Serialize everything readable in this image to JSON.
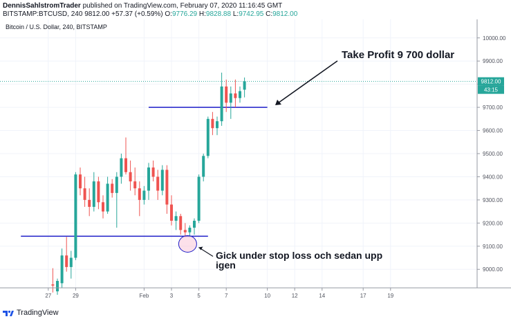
{
  "header": {
    "author": "DennisSahlstromTrader",
    "published_text": "published on TradingView.com, February 07, 2020 11:16:45 GMT",
    "symbol": "BITSTAMP:BTCUSD, 240",
    "last": "9812.00",
    "change": "+57.37 (+0.59%)",
    "o_label": "O:",
    "o_value": "9776.29",
    "h_label": "H:",
    "h_value": "9828.88",
    "l_label": "L:",
    "l_value": "9742.95",
    "c_label": "C:",
    "c_value": "9812.00"
  },
  "chart_title": "Bitcoin / U.S. Dollar, 240, BITSTAMP",
  "footer": {
    "brand": "TradingView"
  },
  "colors": {
    "up": "#26a69a",
    "down": "#ef5350",
    "line": "#1c1cc8",
    "annotation": "#131722",
    "price_tag": "#26a69a",
    "zone": "#f8bbd0"
  },
  "annotations": {
    "take_profit": "Take Profit 9 700 dollar",
    "stop_note_1": "Gick under stop loss och sedan upp",
    "stop_note_2": "igen"
  },
  "price_tag": {
    "price": "9812.00",
    "countdown": "43:15"
  },
  "chart_data": {
    "type": "candlestick",
    "title": "Bitcoin / U.S. Dollar, 240, BITSTAMP",
    "y_axis": {
      "ticks": [
        "10000.00",
        "9900.00",
        "9800.00",
        "9700.00",
        "9600.00",
        "9500.00",
        "9400.00",
        "9300.00",
        "9200.00",
        "9100.00",
        "9000.00"
      ],
      "ylim": [
        8920,
        10080
      ],
      "side": "right"
    },
    "x_axis": {
      "labels": [
        "27",
        "29",
        "Feb",
        "3",
        "5",
        "7",
        "10",
        "12",
        "14",
        "17",
        "19"
      ],
      "label_index": [
        -2,
        4,
        19,
        25,
        31,
        37,
        46,
        52,
        58,
        67,
        73
      ]
    },
    "horizontal_lines": [
      {
        "price": 9700,
        "from_index": 20,
        "to_index": 46
      },
      {
        "price": 9143,
        "from_index": -8,
        "to_index": 33
      }
    ],
    "current_price_line": 9812,
    "candles": [
      {
        "i": -1,
        "o": 8935,
        "h": 9005,
        "l": 8900,
        "c": 8930
      },
      {
        "i": 0,
        "o": 8905,
        "h": 8960,
        "l": 8890,
        "c": 8950
      },
      {
        "i": 1,
        "o": 8940,
        "h": 9090,
        "l": 8920,
        "c": 9060
      },
      {
        "i": 2,
        "o": 9060,
        "h": 9140,
        "l": 8990,
        "c": 9010
      },
      {
        "i": 3,
        "o": 9010,
        "h": 9080,
        "l": 8960,
        "c": 9050
      },
      {
        "i": 4,
        "o": 9050,
        "h": 9420,
        "l": 9040,
        "c": 9410
      },
      {
        "i": 5,
        "o": 9410,
        "h": 9440,
        "l": 9320,
        "c": 9350
      },
      {
        "i": 6,
        "o": 9350,
        "h": 9400,
        "l": 9270,
        "c": 9300
      },
      {
        "i": 7,
        "o": 9300,
        "h": 9350,
        "l": 9230,
        "c": 9270
      },
      {
        "i": 8,
        "o": 9270,
        "h": 9420,
        "l": 9250,
        "c": 9380
      },
      {
        "i": 9,
        "o": 9380,
        "h": 9400,
        "l": 9260,
        "c": 9290
      },
      {
        "i": 10,
        "o": 9290,
        "h": 9320,
        "l": 9220,
        "c": 9250
      },
      {
        "i": 11,
        "o": 9250,
        "h": 9400,
        "l": 9240,
        "c": 9370
      },
      {
        "i": 12,
        "o": 9370,
        "h": 9390,
        "l": 9310,
        "c": 9330
      },
      {
        "i": 13,
        "o": 9330,
        "h": 9420,
        "l": 9180,
        "c": 9400
      },
      {
        "i": 14,
        "o": 9400,
        "h": 9500,
        "l": 9370,
        "c": 9480
      },
      {
        "i": 15,
        "o": 9480,
        "h": 9570,
        "l": 9410,
        "c": 9420
      },
      {
        "i": 16,
        "o": 9420,
        "h": 9470,
        "l": 9340,
        "c": 9380
      },
      {
        "i": 17,
        "o": 9380,
        "h": 9440,
        "l": 9320,
        "c": 9350
      },
      {
        "i": 18,
        "o": 9350,
        "h": 9380,
        "l": 9230,
        "c": 9300
      },
      {
        "i": 19,
        "o": 9300,
        "h": 9360,
        "l": 9280,
        "c": 9340
      },
      {
        "i": 20,
        "o": 9340,
        "h": 9460,
        "l": 9300,
        "c": 9440
      },
      {
        "i": 21,
        "o": 9440,
        "h": 9470,
        "l": 9380,
        "c": 9400
      },
      {
        "i": 22,
        "o": 9400,
        "h": 9430,
        "l": 9300,
        "c": 9340
      },
      {
        "i": 23,
        "o": 9340,
        "h": 9450,
        "l": 9320,
        "c": 9430
      },
      {
        "i": 24,
        "o": 9430,
        "h": 9450,
        "l": 9240,
        "c": 9280
      },
      {
        "i": 25,
        "o": 9280,
        "h": 9320,
        "l": 9190,
        "c": 9210
      },
      {
        "i": 26,
        "o": 9210,
        "h": 9250,
        "l": 9170,
        "c": 9230
      },
      {
        "i": 27,
        "o": 9230,
        "h": 9240,
        "l": 9150,
        "c": 9170
      },
      {
        "i": 28,
        "o": 9170,
        "h": 9200,
        "l": 9140,
        "c": 9160
      },
      {
        "i": 29,
        "o": 9160,
        "h": 9190,
        "l": 9140,
        "c": 9180
      },
      {
        "i": 30,
        "o": 9180,
        "h": 9220,
        "l": 9150,
        "c": 9210
      },
      {
        "i": 31,
        "o": 9210,
        "h": 9410,
        "l": 9200,
        "c": 9400
      },
      {
        "i": 32,
        "o": 9400,
        "h": 9500,
        "l": 9380,
        "c": 9490
      },
      {
        "i": 33,
        "o": 9490,
        "h": 9660,
        "l": 9480,
        "c": 9650
      },
      {
        "i": 34,
        "o": 9650,
        "h": 9680,
        "l": 9580,
        "c": 9610
      },
      {
        "i": 35,
        "o": 9610,
        "h": 9660,
        "l": 9580,
        "c": 9640
      },
      {
        "i": 36,
        "o": 9640,
        "h": 9850,
        "l": 9620,
        "c": 9790
      },
      {
        "i": 37,
        "o": 9790,
        "h": 9820,
        "l": 9680,
        "c": 9720
      },
      {
        "i": 38,
        "o": 9720,
        "h": 9790,
        "l": 9650,
        "c": 9760
      },
      {
        "i": 39,
        "o": 9760,
        "h": 9820,
        "l": 9700,
        "c": 9740
      },
      {
        "i": 40,
        "o": 9740,
        "h": 9790,
        "l": 9720,
        "c": 9770
      },
      {
        "i": 41,
        "o": 9776.29,
        "h": 9828.88,
        "l": 9742.95,
        "c": 9812
      }
    ]
  }
}
